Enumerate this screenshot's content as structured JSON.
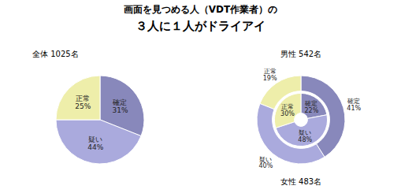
{
  "title": "画面を見つめる人（VDT作業者）の",
  "subtitle": "３人に１人がドライアイ",
  "chart_data": [
    {
      "type": "pie",
      "title": "全体 1025名",
      "categories": [
        "確定",
        "疑い",
        "正常"
      ],
      "values": [
        31,
        44,
        25
      ],
      "value_labels": [
        "確定\n31%",
        "疑い\n44%",
        "正常\n25%"
      ],
      "colors": [
        "#8888bb",
        "#aaaadd",
        "#eeeeaa"
      ],
      "data_labels": true
    },
    {
      "type": "donut",
      "categories": [
        "確定",
        "疑い",
        "正常"
      ],
      "series": [
        {
          "name": "男性 542名",
          "values": [
            22,
            48,
            30
          ],
          "value_labels": [
            "確定\n22%",
            "疑い\n48%",
            "正常\n30%"
          ],
          "colors": [
            "#8888bb",
            "#aaaadd",
            "#eeeeaa"
          ]
        },
        {
          "name": "女性 483名",
          "values": [
            41,
            40,
            19
          ],
          "value_labels": [
            "確定\n41%",
            "疑い\n40%",
            "正常\n19%"
          ],
          "colors": [
            "#8888bb",
            "#aaaadd",
            "#eeeeaa"
          ]
        }
      ],
      "data_labels": true
    }
  ]
}
